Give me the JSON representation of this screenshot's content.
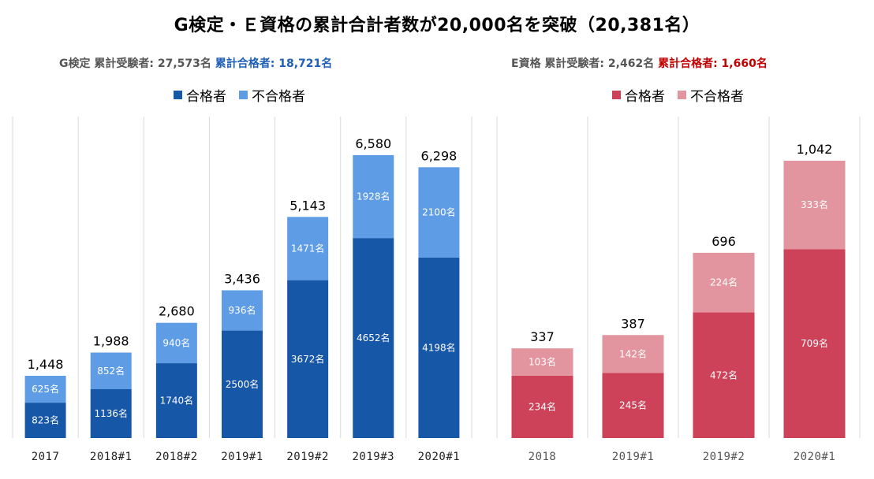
{
  "title": "G検定・Ｅ資格の累計合計者数が20,000名を突破（20,381名）",
  "g_summary": {
    "prefix": "G検定 累計受験者: 27,573名",
    "passed": "累計合格者: 18,721名"
  },
  "e_summary": {
    "prefix": "E資格 累計受験者: 2,462名",
    "passed": "累計合格者: 1,660名"
  },
  "legend": {
    "passed": "合格者",
    "failed": "不合格者"
  },
  "colors": {
    "g_pass": "#1757a8",
    "g_fail": "#5e9ce6",
    "e_pass": "#ce4259",
    "e_fail": "#e3959f",
    "grid": "#d9d9d9"
  },
  "chart_data": [
    {
      "type": "bar",
      "stacked": true,
      "categories": [
        "2017",
        "2018#1",
        "2018#2",
        "2019#1",
        "2019#2",
        "2019#3",
        "2020#1"
      ],
      "series": [
        {
          "name": "合格者",
          "values": [
            823,
            1136,
            1740,
            2500,
            3672,
            4652,
            4198
          ],
          "labels": [
            "823名",
            "1136名",
            "1740名",
            "2500名",
            "3672名",
            "4652名",
            "4198名"
          ]
        },
        {
          "name": "不合格者",
          "values": [
            625,
            852,
            940,
            936,
            1471,
            1928,
            2100
          ],
          "labels": [
            "625名",
            "852名",
            "940名",
            "936名",
            "1471名",
            "1928名",
            "2100名"
          ]
        }
      ],
      "totals": [
        "1,448",
        "1,988",
        "2,680",
        "3,436",
        "5,143",
        "6,580",
        "6,298"
      ],
      "ylim": [
        0,
        7000
      ],
      "grid": "vertical"
    },
    {
      "type": "bar",
      "stacked": true,
      "categories": [
        "2018",
        "2019#1",
        "2019#2",
        "2020#1"
      ],
      "series": [
        {
          "name": "合格者",
          "values": [
            234,
            245,
            472,
            709
          ],
          "labels": [
            "234名",
            "245名",
            "472名",
            "709名"
          ]
        },
        {
          "name": "不合格者",
          "values": [
            103,
            142,
            224,
            333
          ],
          "labels": [
            "103名",
            "142名",
            "224名",
            "333名"
          ]
        }
      ],
      "totals": [
        "337",
        "387",
        "696",
        "1,042"
      ],
      "ylim": [
        0,
        1100
      ],
      "grid": "vertical"
    }
  ]
}
